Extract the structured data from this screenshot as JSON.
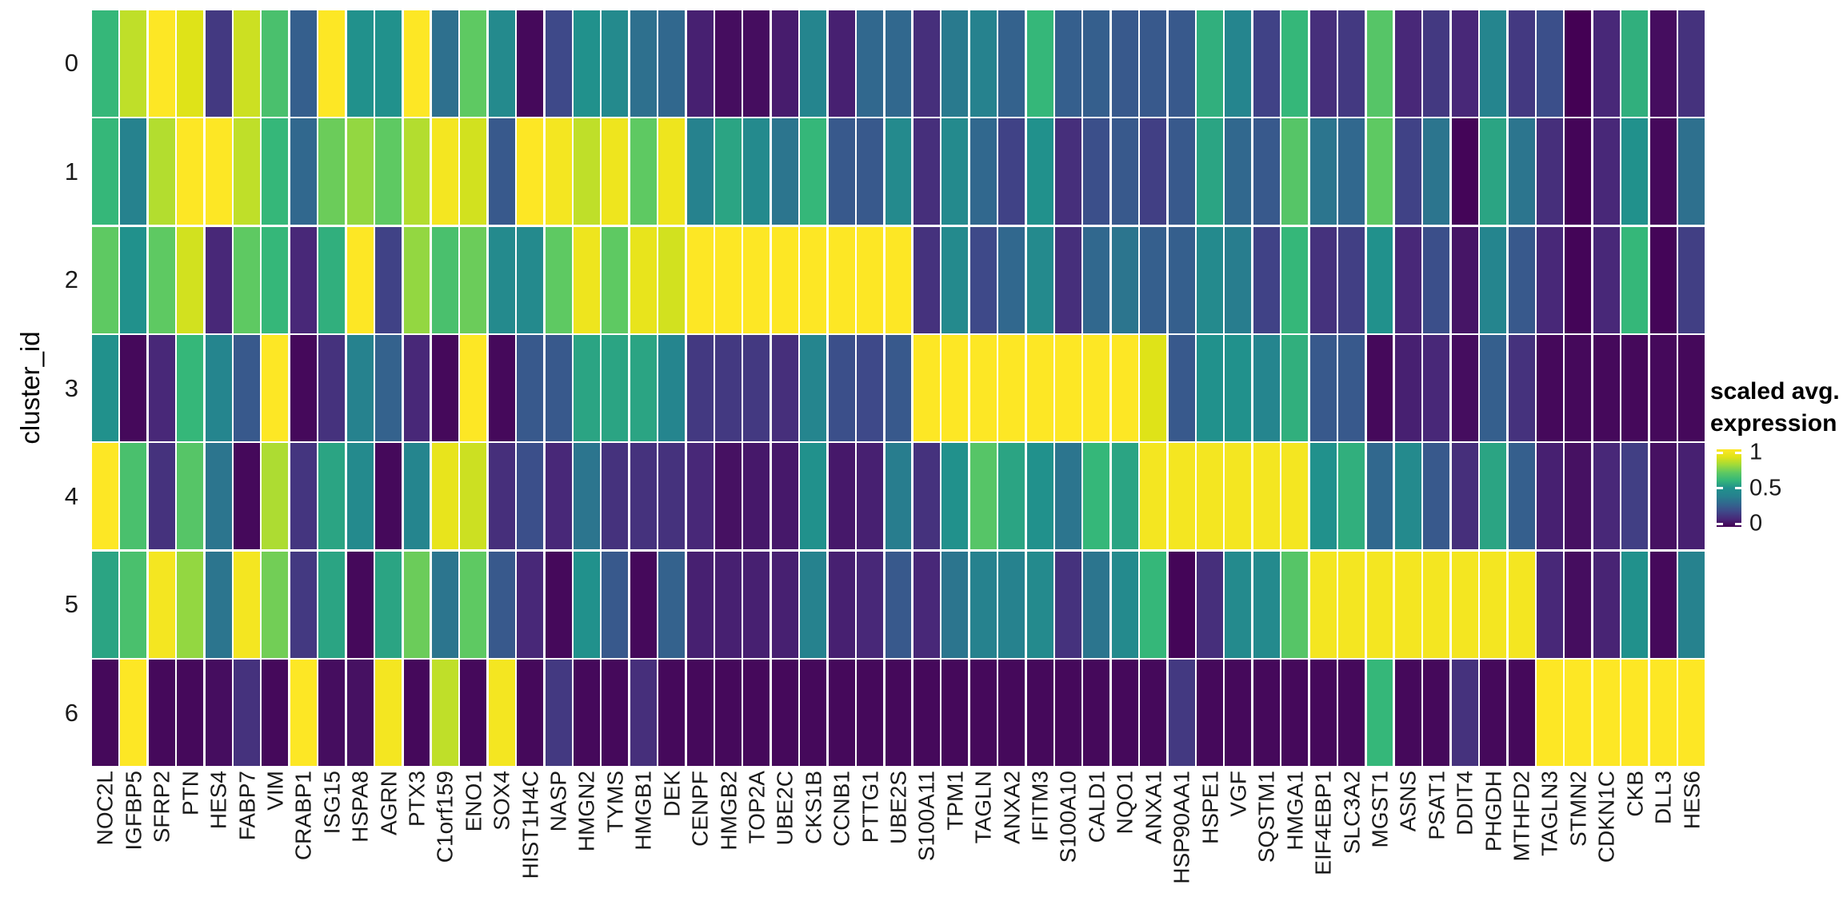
{
  "y_axis": {
    "label": "cluster_id",
    "ticks": [
      "0",
      "1",
      "2",
      "3",
      "4",
      "5",
      "6"
    ]
  },
  "legend": {
    "title_line1": "scaled avg.",
    "title_line2": "expression",
    "tick_labels": [
      "1",
      "0.5",
      "0"
    ],
    "tick_values": [
      1,
      0.5,
      0
    ]
  },
  "chart_data": {
    "type": "heatmap",
    "title": "",
    "xlabel": "",
    "ylabel": "cluster_id",
    "legend_position": "right",
    "grid": false,
    "colormap": "viridis",
    "color_low": "#440154",
    "color_mid": "#21918c",
    "color_high": "#fde725",
    "value_range": [
      0,
      1
    ],
    "colorbar_label": "scaled avg. expression",
    "genes": [
      "NOC2L",
      "IGFBP5",
      "SFRP2",
      "PTN",
      "HES4",
      "FABP7",
      "VIM",
      "CRABP1",
      "ISG15",
      "HSPA8",
      "AGRN",
      "PTX3",
      "C1orf159",
      "ENO1",
      "SOX4",
      "HIST1H4C",
      "NASP",
      "HMGN2",
      "TYMS",
      "HMGB1",
      "DEK",
      "CENPF",
      "HMGB2",
      "TOP2A",
      "UBE2C",
      "CKS1B",
      "CCNB1",
      "PTTG1",
      "UBE2S",
      "S100A11",
      "TPM1",
      "TAGLN",
      "ANXA2",
      "IFITM3",
      "S100A10",
      "CALD1",
      "NQO1",
      "ANXA1",
      "HSP90AA1",
      "HSPE1",
      "VGF",
      "SQSTM1",
      "HMGA1",
      "EIF4EBP1",
      "SLC3A2",
      "MGST1",
      "ASNS",
      "PSAT1",
      "DDIT4",
      "PHGDH",
      "MTHFD2",
      "TAGLN3",
      "STMN2",
      "CDKN1C",
      "CKB",
      "DLL3",
      "HES6"
    ],
    "clusters": [
      "0",
      "1",
      "2",
      "3",
      "4",
      "5",
      "6"
    ],
    "values": [
      [
        0.6,
        0.85,
        1.0,
        0.9,
        0.15,
        0.87,
        0.65,
        0.27,
        1.0,
        0.5,
        0.5,
        1.0,
        0.33,
        0.7,
        0.45,
        0.02,
        0.2,
        0.5,
        0.45,
        0.33,
        0.3,
        0.08,
        0.03,
        0.03,
        0.07,
        0.42,
        0.08,
        0.3,
        0.3,
        0.12,
        0.37,
        0.4,
        0.28,
        0.6,
        0.27,
        0.27,
        0.25,
        0.25,
        0.25,
        0.58,
        0.42,
        0.18,
        0.6,
        0.12,
        0.15,
        0.68,
        0.1,
        0.15,
        0.1,
        0.42,
        0.15,
        0.22,
        0.0,
        0.1,
        0.58,
        0.03,
        0.13
      ],
      [
        0.6,
        0.4,
        0.83,
        1.0,
        1.0,
        0.85,
        0.6,
        0.3,
        0.72,
        0.78,
        0.7,
        0.83,
        0.97,
        0.88,
        0.25,
        1.0,
        0.97,
        0.85,
        0.95,
        0.7,
        0.95,
        0.4,
        0.55,
        0.45,
        0.35,
        0.6,
        0.25,
        0.25,
        0.45,
        0.12,
        0.45,
        0.3,
        0.18,
        0.5,
        0.12,
        0.22,
        0.25,
        0.17,
        0.25,
        0.55,
        0.3,
        0.25,
        0.68,
        0.35,
        0.3,
        0.7,
        0.18,
        0.35,
        0.01,
        0.55,
        0.35,
        0.12,
        0.01,
        0.1,
        0.5,
        0.02,
        0.33
      ],
      [
        0.7,
        0.5,
        0.7,
        0.88,
        0.1,
        0.7,
        0.6,
        0.1,
        0.58,
        1.0,
        0.18,
        0.78,
        0.65,
        0.72,
        0.45,
        0.45,
        0.7,
        0.95,
        0.7,
        0.93,
        0.88,
        1.0,
        1.0,
        1.0,
        1.0,
        1.0,
        1.0,
        1.0,
        1.0,
        0.13,
        0.45,
        0.2,
        0.3,
        0.45,
        0.12,
        0.3,
        0.35,
        0.27,
        0.27,
        0.45,
        0.38,
        0.18,
        0.6,
        0.13,
        0.17,
        0.5,
        0.1,
        0.22,
        0.05,
        0.42,
        0.25,
        0.1,
        0.01,
        0.1,
        0.6,
        0.01,
        0.17
      ],
      [
        0.5,
        0.02,
        0.1,
        0.6,
        0.42,
        0.25,
        1.0,
        0.02,
        0.13,
        0.4,
        0.28,
        0.1,
        0.02,
        1.0,
        0.02,
        0.25,
        0.25,
        0.55,
        0.55,
        0.55,
        0.42,
        0.15,
        0.15,
        0.15,
        0.12,
        0.42,
        0.22,
        0.2,
        0.25,
        1.0,
        1.0,
        1.0,
        1.0,
        1.0,
        1.0,
        1.0,
        1.0,
        0.9,
        0.25,
        0.5,
        0.5,
        0.42,
        0.58,
        0.25,
        0.25,
        0.02,
        0.08,
        0.1,
        0.03,
        0.27,
        0.13,
        0.02,
        0.02,
        0.02,
        0.02,
        0.02,
        0.02
      ],
      [
        1.0,
        0.65,
        0.13,
        0.68,
        0.35,
        0.02,
        0.82,
        0.14,
        0.55,
        0.45,
        0.02,
        0.42,
        0.93,
        0.87,
        0.12,
        0.22,
        0.1,
        0.35,
        0.13,
        0.13,
        0.13,
        0.1,
        0.04,
        0.06,
        0.06,
        0.5,
        0.06,
        0.08,
        0.38,
        0.13,
        0.5,
        0.68,
        0.55,
        0.5,
        0.35,
        0.6,
        0.55,
        0.97,
        0.97,
        0.97,
        0.97,
        0.97,
        0.97,
        0.5,
        0.58,
        0.3,
        0.45,
        0.25,
        0.12,
        0.55,
        0.27,
        0.08,
        0.04,
        0.1,
        0.17,
        0.04,
        0.08
      ],
      [
        0.55,
        0.65,
        0.97,
        0.78,
        0.35,
        0.97,
        0.73,
        0.15,
        0.55,
        0.02,
        0.55,
        0.72,
        0.35,
        0.7,
        0.25,
        0.1,
        0.02,
        0.5,
        0.25,
        0.02,
        0.28,
        0.08,
        0.08,
        0.08,
        0.08,
        0.4,
        0.08,
        0.1,
        0.25,
        0.1,
        0.35,
        0.4,
        0.4,
        0.45,
        0.13,
        0.35,
        0.45,
        0.6,
        0.01,
        0.12,
        0.45,
        0.45,
        0.68,
        0.97,
        0.97,
        0.97,
        0.97,
        0.97,
        0.97,
        0.97,
        0.97,
        0.1,
        0.03,
        0.09,
        0.5,
        0.02,
        0.4
      ],
      [
        0.02,
        1.0,
        0.02,
        0.02,
        0.03,
        0.13,
        0.02,
        1.0,
        0.03,
        0.04,
        0.97,
        0.02,
        0.85,
        0.02,
        0.97,
        0.02,
        0.15,
        0.02,
        0.02,
        0.12,
        0.02,
        0.02,
        0.02,
        0.02,
        0.02,
        0.02,
        0.02,
        0.02,
        0.02,
        0.02,
        0.02,
        0.02,
        0.02,
        0.02,
        0.02,
        0.02,
        0.02,
        0.02,
        0.15,
        0.02,
        0.02,
        0.02,
        0.02,
        0.02,
        0.02,
        0.6,
        0.02,
        0.02,
        0.13,
        0.02,
        0.02,
        1.0,
        1.0,
        1.0,
        1.0,
        1.0,
        1.0
      ]
    ]
  }
}
